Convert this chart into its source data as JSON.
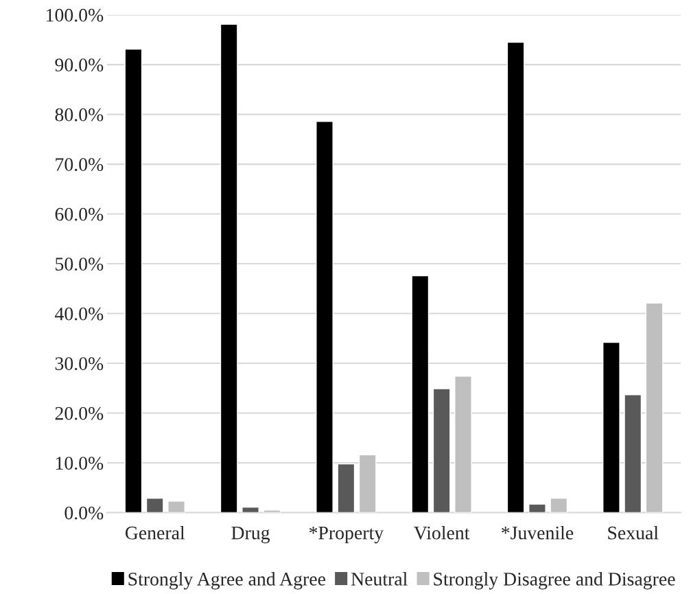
{
  "chart_data": {
    "type": "bar",
    "categories": [
      "General",
      "Drug",
      "*Property",
      "Violent",
      "*Juvenile",
      "Sexual"
    ],
    "series": [
      {
        "name": "Strongly Agree and Agree",
        "color": "#000000",
        "values": [
          93.1,
          98.1,
          78.6,
          47.6,
          94.5,
          34.2
        ]
      },
      {
        "name": "Neutral",
        "color": "#595959",
        "values": [
          2.9,
          1.1,
          9.8,
          24.9,
          1.7,
          23.7
        ]
      },
      {
        "name": "Strongly Disagree and Disagree",
        "color": "#bfbfbf",
        "values": [
          2.3,
          0.5,
          11.6,
          27.4,
          2.9,
          42.1
        ]
      }
    ],
    "ylim": [
      0,
      100
    ],
    "yticks": [
      {
        "value": 0,
        "label": "0.0%"
      },
      {
        "value": 10,
        "label": "10.0%"
      },
      {
        "value": 20,
        "label": "20.0%"
      },
      {
        "value": 30,
        "label": "30.0%"
      },
      {
        "value": 40,
        "label": "40.0%"
      },
      {
        "value": 50,
        "label": "50.0%"
      },
      {
        "value": 60,
        "label": "60.0%"
      },
      {
        "value": 70,
        "label": "70.0%"
      },
      {
        "value": 80,
        "label": "80.0%"
      },
      {
        "value": 90,
        "label": "90.0%"
      },
      {
        "value": 100,
        "label": "100.0%"
      }
    ],
    "grid": "y",
    "legend": "bottom"
  }
}
